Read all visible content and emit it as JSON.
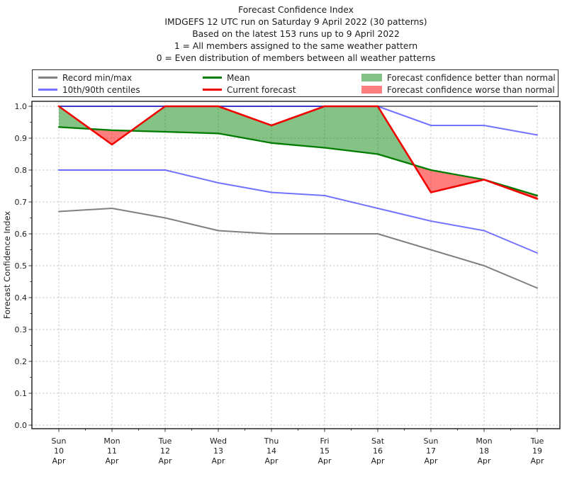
{
  "header": {
    "title": "Forecast Confidence Index",
    "subtitle_run": "IMDGEFS 12 UTC run on Saturday 9 April 2022 (30 patterns)",
    "subtitle_based": "Based on the latest 153 runs up to 9 April 2022",
    "subtitle_scale_one": "1 = All members assigned to the same weather pattern",
    "subtitle_scale_zero": "0 = Even distribution of members between all weather patterns"
  },
  "colors": {
    "record": "#808080",
    "centiles": "#0000ff",
    "centiles_opacity": 0.55,
    "mean": "#007c00",
    "current": "#f10000",
    "better_fill": "#008000",
    "better_fill_opacity": 0.48,
    "worse_fill": "#ff0000",
    "worse_fill_opacity": 0.5,
    "grid": "#c9c9c9",
    "spine": "#1a1a1a",
    "text": "#1f1f1f"
  },
  "legend": {
    "items": [
      {
        "label": "Record min/max",
        "swatch": "line",
        "color_key": "record",
        "column": 0
      },
      {
        "label": "10th/90th centiles",
        "swatch": "line",
        "color_key": "centiles",
        "column": 0
      },
      {
        "label": "Mean",
        "swatch": "line",
        "color_key": "mean",
        "column": 1
      },
      {
        "label": "Current forecast",
        "swatch": "line",
        "color_key": "current",
        "column": 1
      },
      {
        "label": "Forecast confidence better than normal",
        "swatch": "patch",
        "color_key": "better_fill",
        "column": 2
      },
      {
        "label": "Forecast confidence worse than normal",
        "swatch": "patch",
        "color_key": "worse_fill",
        "column": 2
      }
    ]
  },
  "chart_data": {
    "type": "line",
    "title": "Forecast Confidence Index",
    "ylabel": "Forecast Confidence Index",
    "ylim": [
      0.0,
      1.0
    ],
    "ytick_labels": [
      "0.0",
      "0.1",
      "0.2",
      "0.3",
      "0.4",
      "0.5",
      "0.6",
      "0.7",
      "0.8",
      "0.9",
      "1.0"
    ],
    "grid": true,
    "legend_position": "top",
    "x_categories": [
      {
        "dow": "Sun",
        "day": "10",
        "mon": "Apr"
      },
      {
        "dow": "Mon",
        "day": "11",
        "mon": "Apr"
      },
      {
        "dow": "Tue",
        "day": "12",
        "mon": "Apr"
      },
      {
        "dow": "Wed",
        "day": "13",
        "mon": "Apr"
      },
      {
        "dow": "Thu",
        "day": "14",
        "mon": "Apr"
      },
      {
        "dow": "Fri",
        "day": "15",
        "mon": "Apr"
      },
      {
        "dow": "Sat",
        "day": "16",
        "mon": "Apr"
      },
      {
        "dow": "Sun",
        "day": "17",
        "mon": "Apr"
      },
      {
        "dow": "Mon",
        "day": "18",
        "mon": "Apr"
      },
      {
        "dow": "Tue",
        "day": "19",
        "mon": "Apr"
      }
    ],
    "series": [
      {
        "name": "Record max",
        "color_key": "record",
        "values": [
          1.0,
          1.0,
          1.0,
          1.0,
          1.0,
          1.0,
          1.0,
          1.0,
          1.0,
          1.0
        ]
      },
      {
        "name": "90th centile",
        "color_key": "centiles",
        "values": [
          1.0,
          1.0,
          1.0,
          1.0,
          1.0,
          1.0,
          1.0,
          0.94,
          0.94,
          0.91
        ]
      },
      {
        "name": "10th centile",
        "color_key": "centiles",
        "values": [
          0.8,
          0.8,
          0.8,
          0.76,
          0.73,
          0.72,
          0.68,
          0.64,
          0.61,
          0.54
        ]
      },
      {
        "name": "Record min",
        "color_key": "record",
        "values": [
          0.67,
          0.68,
          0.65,
          0.61,
          0.6,
          0.6,
          0.6,
          0.55,
          0.5,
          0.43
        ]
      },
      {
        "name": "Mean",
        "color_key": "mean",
        "values": [
          0.935,
          0.925,
          0.92,
          0.915,
          0.885,
          0.87,
          0.85,
          0.8,
          0.77,
          0.72
        ]
      },
      {
        "name": "Current forecast",
        "color_key": "current",
        "values": [
          1.0,
          0.88,
          1.0,
          1.0,
          0.94,
          1.0,
          1.0,
          0.73,
          0.77,
          0.71
        ]
      }
    ],
    "fill_between": {
      "upper": "Current forecast",
      "lower": "Mean",
      "positive_label": "Forecast confidence better than normal",
      "negative_label": "Forecast confidence worse than normal"
    }
  }
}
